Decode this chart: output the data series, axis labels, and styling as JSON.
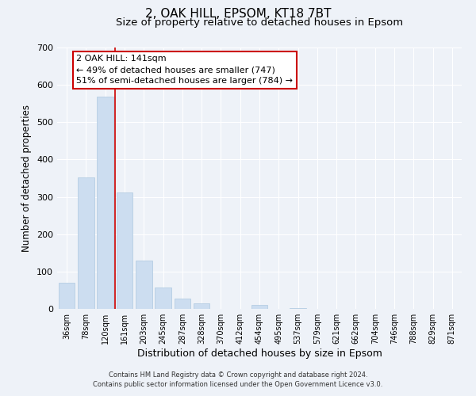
{
  "title_line1": "2, OAK HILL, EPSOM, KT18 7BT",
  "title_line2": "Size of property relative to detached houses in Epsom",
  "xlabel": "Distribution of detached houses by size in Epsom",
  "ylabel": "Number of detached properties",
  "bar_labels": [
    "36sqm",
    "78sqm",
    "120sqm",
    "161sqm",
    "203sqm",
    "245sqm",
    "287sqm",
    "328sqm",
    "370sqm",
    "412sqm",
    "454sqm",
    "495sqm",
    "537sqm",
    "579sqm",
    "621sqm",
    "662sqm",
    "704sqm",
    "746sqm",
    "788sqm",
    "829sqm",
    "871sqm"
  ],
  "bar_values": [
    70,
    353,
    568,
    312,
    130,
    58,
    27,
    14,
    0,
    0,
    10,
    0,
    3,
    0,
    0,
    0,
    0,
    0,
    0,
    0,
    0
  ],
  "bar_color": "#ccddf0",
  "bar_edge_color": "#aec8e0",
  "highlight_bar_index": 2,
  "highlight_line_color": "#cc0000",
  "ylim": [
    0,
    700
  ],
  "yticks": [
    0,
    100,
    200,
    300,
    400,
    500,
    600,
    700
  ],
  "annotation_box_text_line1": "2 OAK HILL: 141sqm",
  "annotation_box_text_line2": "← 49% of detached houses are smaller (747)",
  "annotation_box_text_line3": "51% of semi-detached houses are larger (784) →",
  "annotation_box_color": "#ffffff",
  "annotation_box_edge_color": "#cc0000",
  "footer_line1": "Contains HM Land Registry data © Crown copyright and database right 2024.",
  "footer_line2": "Contains public sector information licensed under the Open Government Licence v3.0.",
  "background_color": "#eef2f8",
  "grid_color": "#ffffff",
  "title1_fontsize": 11,
  "title2_fontsize": 9.5,
  "xlabel_fontsize": 9,
  "ylabel_fontsize": 8.5
}
